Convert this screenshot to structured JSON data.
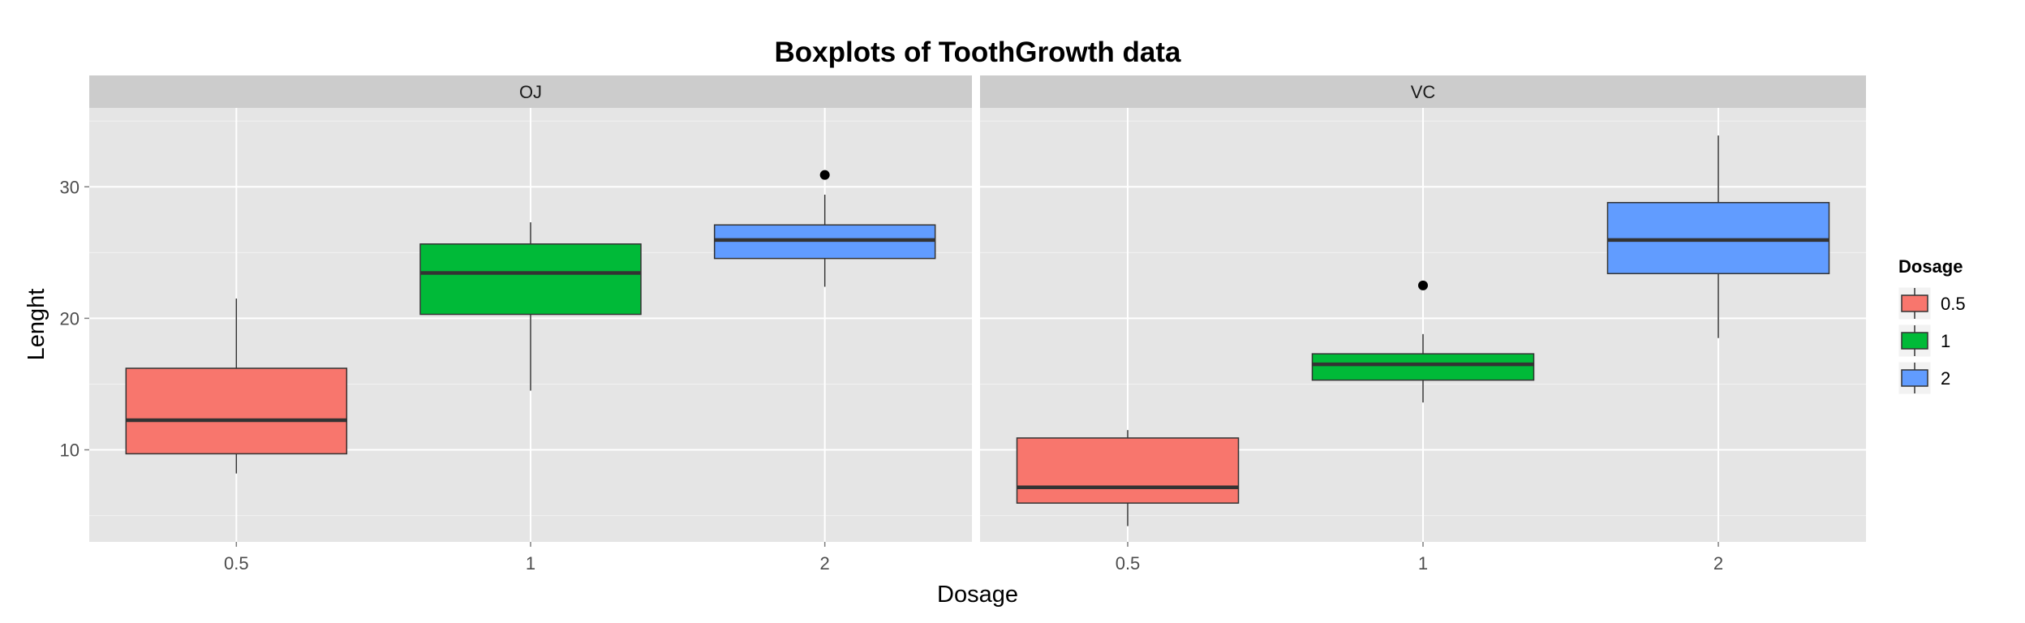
{
  "chart_data": {
    "type": "boxplot",
    "title": "Boxplots of ToothGrowth data",
    "xlabel": "Dosage",
    "ylabel": "Lenght",
    "ylim": [
      3,
      36
    ],
    "y_ticks": [
      10,
      20,
      30
    ],
    "categories": [
      "0.5",
      "1",
      "2"
    ],
    "grid": true,
    "legend": {
      "title": "Dosage",
      "placement": "right",
      "entries": [
        "0.5",
        "1",
        "2"
      ]
    },
    "colors": [
      "#F8766D",
      "#00BA38",
      "#619CFF"
    ],
    "panels": [
      {
        "label": "OJ",
        "boxes": [
          {
            "dose": "0.5",
            "whisker_low": 8.2,
            "q1": 9.7,
            "median": 12.25,
            "q3": 16.2,
            "whisker_high": 21.5,
            "outliers": []
          },
          {
            "dose": "1",
            "whisker_low": 14.5,
            "q1": 20.3,
            "median": 23.45,
            "q3": 25.65,
            "whisker_high": 27.3,
            "outliers": []
          },
          {
            "dose": "2",
            "whisker_low": 22.4,
            "q1": 24.55,
            "median": 25.95,
            "q3": 27.1,
            "whisker_high": 29.4,
            "outliers": [
              30.9
            ]
          }
        ]
      },
      {
        "label": "VC",
        "boxes": [
          {
            "dose": "0.5",
            "whisker_low": 4.2,
            "q1": 5.95,
            "median": 7.15,
            "q3": 10.9,
            "whisker_high": 11.5,
            "outliers": []
          },
          {
            "dose": "1",
            "whisker_low": 13.6,
            "q1": 15.3,
            "median": 16.5,
            "q3": 17.3,
            "whisker_high": 18.8,
            "outliers": [
              22.5
            ]
          },
          {
            "dose": "2",
            "whisker_low": 18.5,
            "q1": 23.4,
            "median": 25.95,
            "q3": 28.8,
            "whisker_high": 33.9,
            "outliers": []
          }
        ]
      }
    ]
  }
}
